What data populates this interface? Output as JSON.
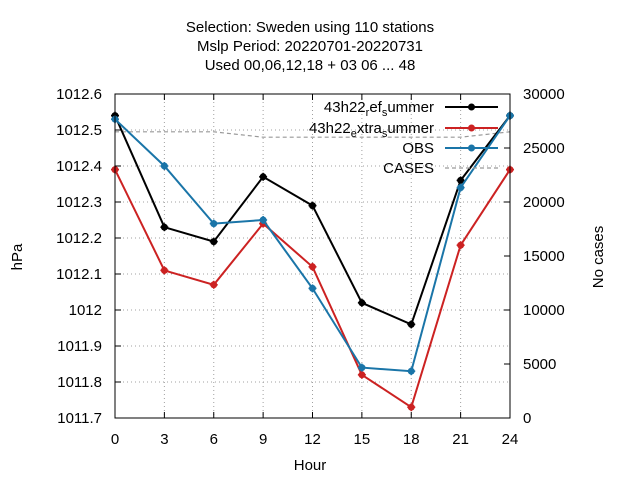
{
  "chart_data": {
    "type": "line",
    "title_lines": [
      "Selection: Sweden using   110 stations",
      "Mslp   Period: 20220701-20220731",
      "Used  00,06,12,18  + 03 06 ... 48"
    ],
    "xlabel": "Hour",
    "ylabel": "hPa",
    "y2label": "No cases",
    "x": [
      0,
      3,
      6,
      9,
      12,
      15,
      18,
      21,
      24
    ],
    "xlim": [
      0,
      24
    ],
    "ylim": [
      1011.7,
      1012.6
    ],
    "y2lim": [
      0,
      30000
    ],
    "x_ticks": [
      "0",
      "3",
      "6",
      "9",
      "12",
      "15",
      "18",
      "21",
      "24"
    ],
    "y_ticks": [
      "1011.7",
      "1011.8",
      "1011.9",
      "1012",
      "1012.1",
      "1012.2",
      "1012.3",
      "1012.4",
      "1012.5",
      "1012.6"
    ],
    "y2_ticks": [
      "0",
      "5000",
      "10000",
      "15000",
      "20000",
      "25000",
      "30000"
    ],
    "grid": true,
    "legend_position": "top-right",
    "series": [
      {
        "name_main": "43h22",
        "name_sub": "r",
        "name_mid": "ef",
        "name_sub2": "s",
        "name_end": "ummer",
        "color": "#000000",
        "axis": "y",
        "values": [
          1012.54,
          1012.23,
          1012.19,
          1012.37,
          1012.29,
          1012.02,
          1011.96,
          1012.36,
          1012.54
        ]
      },
      {
        "name_main": "43h22",
        "name_sub": "e",
        "name_mid": "xtra",
        "name_sub2": "s",
        "name_end": "ummer",
        "color": "#cc2222",
        "axis": "y",
        "values": [
          1012.39,
          1012.11,
          1012.07,
          1012.24,
          1012.12,
          1011.82,
          1011.73,
          1012.18,
          1012.39
        ]
      },
      {
        "name_main": "OBS",
        "color": "#1a75a8",
        "axis": "y",
        "values": [
          1012.53,
          1012.4,
          1012.24,
          1012.25,
          1012.06,
          1011.84,
          1011.83,
          1012.34,
          1012.54
        ]
      },
      {
        "name_main": "CASES",
        "color": "#999999",
        "axis": "y2",
        "dashed": true,
        "values": [
          26500,
          26500,
          26500,
          26000,
          26000,
          26000,
          26000,
          26000,
          26500
        ]
      }
    ]
  }
}
